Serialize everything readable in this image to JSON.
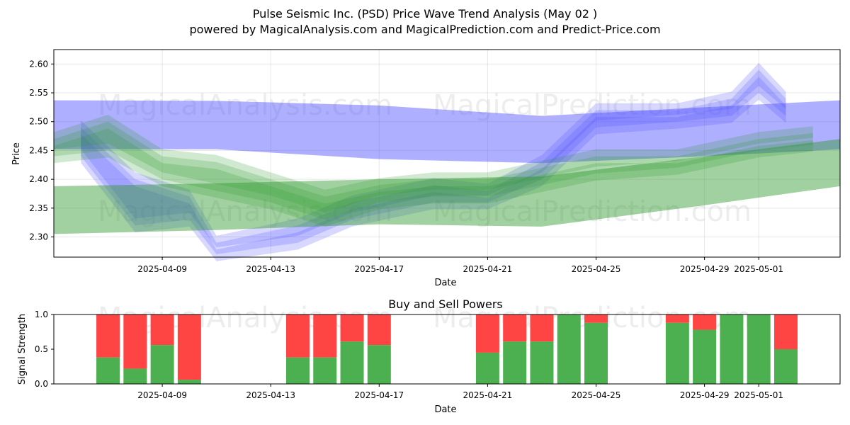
{
  "header": {
    "title": "Pulse Seismic Inc. (PSD) Price Wave Trend Analysis (May 02 )",
    "subtitle": "powered by MagicalAnalysis.com and MagicalPrediction.com and Predict-Price.com"
  },
  "watermarks": [
    "MagicalAnalysis.com",
    "MagicalPrediction.com"
  ],
  "colors": {
    "blue_band": "#4d4dff",
    "green_band": "#2e9a2e",
    "buy": "#4caf50",
    "sell": "#ff4444"
  },
  "chart_data": [
    {
      "type": "area",
      "title": "",
      "xlabel": "Date",
      "ylabel": "Price",
      "xlim": [
        "2025-04-05",
        "2025-05-04"
      ],
      "ylim": [
        2.265,
        2.625
      ],
      "grid": true,
      "x_ticks": [
        "2025-04-09",
        "2025-04-13",
        "2025-04-17",
        "2025-04-21",
        "2025-04-25",
        "2025-04-29",
        "2025-05-01"
      ],
      "y_ticks": [
        2.3,
        2.35,
        2.4,
        2.45,
        2.5,
        2.55,
        2.6
      ],
      "series": [
        {
          "color": "blue",
          "x": [
            "2025-04-05",
            "2025-04-11",
            "2025-04-17",
            "2025-04-23",
            "2025-04-29",
            "2025-05-04"
          ],
          "upper": [
            2.537,
            2.536,
            2.528,
            2.51,
            2.525,
            2.537
          ],
          "lower": [
            2.452,
            2.452,
            2.435,
            2.428,
            2.44,
            2.452
          ]
        },
        {
          "color": "blue",
          "x": [
            "2025-04-06",
            "2025-04-08",
            "2025-04-10",
            "2025-04-11",
            "2025-04-14",
            "2025-04-16",
            "2025-04-19",
            "2025-04-21",
            "2025-04-23",
            "2025-04-25",
            "2025-04-28",
            "2025-04-30",
            "2025-05-01",
            "2025-05-02"
          ],
          "upper": [
            2.49,
            2.4,
            2.37,
            2.29,
            2.32,
            2.36,
            2.39,
            2.38,
            2.43,
            2.52,
            2.52,
            2.54,
            2.59,
            2.54
          ],
          "lower": [
            2.44,
            2.32,
            2.33,
            2.27,
            2.29,
            2.33,
            2.36,
            2.36,
            2.4,
            2.49,
            2.5,
            2.51,
            2.55,
            2.51
          ]
        },
        {
          "color": "green",
          "x": [
            "2025-04-05",
            "2025-04-11",
            "2025-04-17",
            "2025-04-23",
            "2025-04-29",
            "2025-05-04"
          ],
          "upper": [
            2.388,
            2.393,
            2.4,
            2.405,
            2.44,
            2.47
          ],
          "lower": [
            2.305,
            2.312,
            2.322,
            2.318,
            2.355,
            2.388
          ]
        },
        {
          "color": "green",
          "x": [
            "2025-04-05",
            "2025-04-07",
            "2025-04-09",
            "2025-04-11",
            "2025-04-13",
            "2025-04-15",
            "2025-04-17",
            "2025-04-19",
            "2025-04-21",
            "2025-04-23",
            "2025-04-25",
            "2025-04-28",
            "2025-05-01",
            "2025-05-03"
          ],
          "upper": [
            2.47,
            2.5,
            2.44,
            2.43,
            2.4,
            2.37,
            2.39,
            2.4,
            2.4,
            2.42,
            2.44,
            2.44,
            2.47,
            2.48
          ],
          "lower": [
            2.44,
            2.45,
            2.4,
            2.38,
            2.36,
            2.33,
            2.36,
            2.37,
            2.37,
            2.39,
            2.41,
            2.42,
            2.45,
            2.46
          ]
        }
      ]
    },
    {
      "type": "bar",
      "title": "Buy and Sell Powers",
      "xlabel": "Date",
      "ylabel": "Signal Strength",
      "ylim": [
        0,
        1
      ],
      "x_ticks": [
        "2025-04-09",
        "2025-04-13",
        "2025-04-17",
        "2025-04-21",
        "2025-04-25",
        "2025-04-29",
        "2025-05-01"
      ],
      "y_ticks": [
        "0.0",
        "0.5",
        "1.0"
      ],
      "series_names": [
        "Buy",
        "Sell"
      ],
      "bars": [
        {
          "date": "2025-04-07",
          "buy": 0.38
        },
        {
          "date": "2025-04-08",
          "buy": 0.22
        },
        {
          "date": "2025-04-09",
          "buy": 0.56
        },
        {
          "date": "2025-04-10",
          "buy": 0.06
        },
        {
          "date": "2025-04-14",
          "buy": 0.38
        },
        {
          "date": "2025-04-15",
          "buy": 0.38
        },
        {
          "date": "2025-04-16",
          "buy": 0.61
        },
        {
          "date": "2025-04-17",
          "buy": 0.56
        },
        {
          "date": "2025-04-21",
          "buy": 0.45
        },
        {
          "date": "2025-04-22",
          "buy": 0.61
        },
        {
          "date": "2025-04-23",
          "buy": 0.61
        },
        {
          "date": "2025-04-24",
          "buy": 1.0
        },
        {
          "date": "2025-04-25",
          "buy": 0.88
        },
        {
          "date": "2025-04-28",
          "buy": 0.88
        },
        {
          "date": "2025-04-29",
          "buy": 0.78
        },
        {
          "date": "2025-04-30",
          "buy": 1.0
        },
        {
          "date": "2025-05-01",
          "buy": 1.0
        },
        {
          "date": "2025-05-02",
          "buy": 0.5
        }
      ]
    }
  ]
}
